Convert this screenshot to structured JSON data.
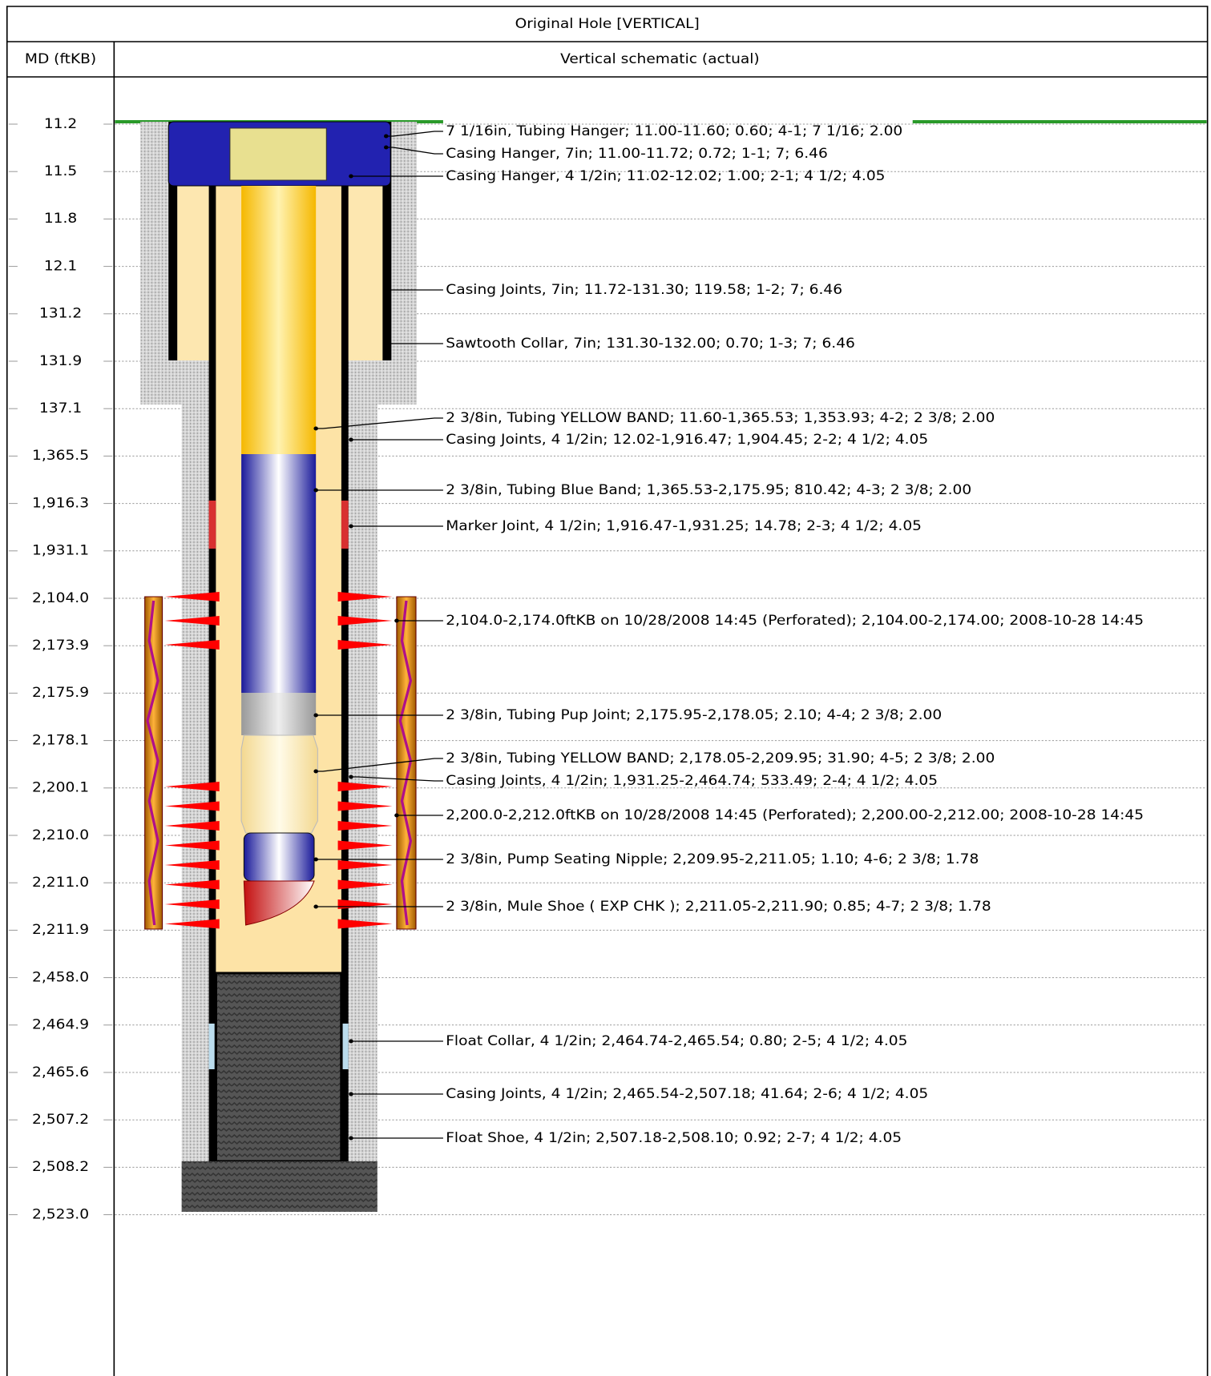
{
  "header": {
    "title": "Original Hole [VERTICAL]",
    "depth_column": "MD (ftKB)",
    "schematic_column": "Vertical schematic (actual)"
  },
  "depths": [
    "11.2",
    "11.5",
    "11.8",
    "12.1",
    "131.2",
    "131.9",
    "137.1",
    "1,365.5",
    "1,916.3",
    "1,931.1",
    "2,104.0",
    "2,173.9",
    "2,175.9",
    "2,178.1",
    "2,200.1",
    "2,210.0",
    "2,211.0",
    "2,211.9",
    "2,458.0",
    "2,464.9",
    "2,465.6",
    "2,507.2",
    "2,508.2",
    "2,523.0"
  ],
  "annotations": [
    "7 1/16in, Tubing Hanger; 11.00-11.60; 0.60; 4-1; 7 1/16; 2.00",
    "Casing Hanger, 7in; 11.00-11.72; 0.72; 1-1; 7; 6.46",
    "Casing Hanger, 4 1/2in; 11.02-12.02; 1.00; 2-1; 4 1/2; 4.05",
    "Casing Joints, 7in; 11.72-131.30; 119.58; 1-2; 7; 6.46",
    "Sawtooth Collar, 7in; 131.30-132.00; 0.70; 1-3; 7; 6.46",
    "2 3/8in, Tubing YELLOW BAND; 11.60-1,365.53; 1,353.93; 4-2; 2 3/8; 2.00",
    "Casing Joints, 4 1/2in; 12.02-1,916.47; 1,904.45; 2-2; 4 1/2; 4.05",
    "2 3/8in, Tubing Blue Band; 1,365.53-2,175.95; 810.42; 4-3; 2 3/8; 2.00",
    "Marker Joint, 4 1/2in; 1,916.47-1,931.25; 14.78; 2-3; 4 1/2; 4.05",
    "2,104.0-2,174.0ftKB on 10/28/2008 14:45 (Perforated); 2,104.00-2,174.00; 2008-10-28 14:45",
    "2 3/8in, Tubing Pup Joint; 2,175.95-2,178.05; 2.10; 4-4; 2 3/8; 2.00",
    "2 3/8in, Tubing YELLOW BAND; 2,178.05-2,209.95; 31.90; 4-5; 2 3/8; 2.00",
    "Casing Joints, 4 1/2in; 1,931.25-2,464.74; 533.49; 2-4; 4 1/2; 4.05",
    "2,200.0-2,212.0ftKB on 10/28/2008 14:45 (Perforated); 2,200.00-2,212.00; 2008-10-28 14:45",
    "2 3/8in, Pump Seating Nipple; 2,209.95-2,211.05; 1.10; 4-6; 2 3/8; 1.78",
    "2 3/8in, Mule Shoe ( EXP CHK ); 2,211.05-2,211.90; 0.85; 4-7; 2 3/8; 1.78",
    "Float Collar, 4 1/2in; 2,464.74-2,465.54; 0.80; 2-5; 4 1/2; 4.05",
    "Casing Joints, 4 1/2in; 2,465.54-2,507.18; 41.64; 2-6; 4 1/2; 4.05",
    "Float Shoe, 4 1/2in; 2,507.18-2,508.10; 0.92; 2-7; 4 1/2; 4.05"
  ]
}
